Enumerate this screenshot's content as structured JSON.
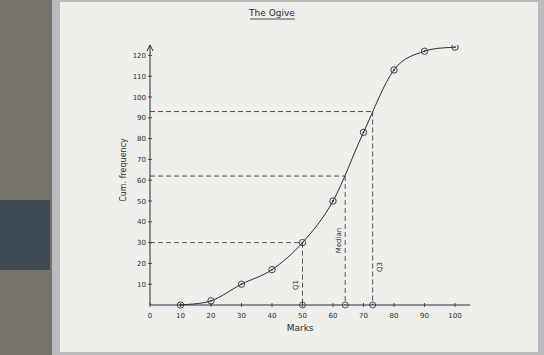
{
  "chart_data": {
    "type": "line",
    "title": "The Ogive",
    "x_label": "Marks",
    "y_label": "Cum. frequency",
    "x": [
      10,
      20,
      30,
      40,
      50,
      60,
      70,
      80,
      90,
      100
    ],
    "values": [
      0,
      2,
      10,
      17,
      30,
      50,
      83,
      113,
      122,
      124
    ],
    "color": "#2b2b3a",
    "marker": "circle",
    "line_style": "solid",
    "xlim": [
      0,
      105
    ],
    "ylim": [
      0,
      125
    ],
    "xticks": [
      0,
      10,
      20,
      30,
      40,
      50,
      60,
      70,
      80,
      90,
      100
    ],
    "yticks": [
      10,
      20,
      30,
      40,
      50,
      60,
      70,
      80,
      90,
      100,
      110,
      120
    ],
    "annotations": [
      {
        "label": "Q1",
        "y": 30,
        "x": 50
      },
      {
        "label": "Median",
        "y": 62,
        "x": 64
      },
      {
        "label": "Q3",
        "y": 93,
        "x": 73
      }
    ]
  }
}
